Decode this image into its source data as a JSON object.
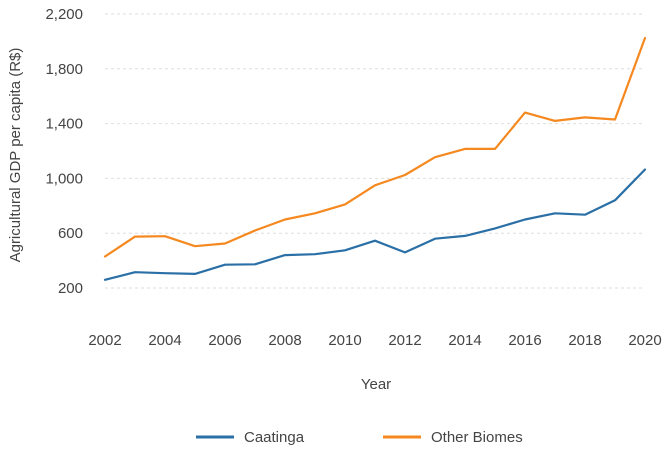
{
  "chart_data": {
    "type": "line",
    "title": "",
    "xlabel": "Year",
    "ylabel": "Agricultural GDP per capita (R$)",
    "x": [
      2002,
      2003,
      2004,
      2005,
      2006,
      2007,
      2008,
      2009,
      2010,
      2011,
      2012,
      2013,
      2014,
      2015,
      2016,
      2017,
      2018,
      2019,
      2020
    ],
    "xticks": [
      "2002",
      "2004",
      "2006",
      "2008",
      "2010",
      "2012",
      "2014",
      "2016",
      "2018",
      "2020"
    ],
    "yticks": [
      "200",
      "600",
      "1,000",
      "1,400",
      "1,800",
      "2,200"
    ],
    "ylim": [
      200,
      2200
    ],
    "grid": true,
    "legend_position": "bottom",
    "series": [
      {
        "name": "Caatinga",
        "color": "#2a6fa6",
        "values": [
          260,
          315,
          308,
          303,
          370,
          373,
          440,
          447,
          475,
          545,
          460,
          560,
          580,
          635,
          700,
          745,
          735,
          840,
          1065
        ]
      },
      {
        "name": "Other Biomes",
        "color": "#f5881f",
        "values": [
          430,
          575,
          578,
          505,
          525,
          620,
          700,
          745,
          810,
          950,
          1025,
          1155,
          1215,
          1215,
          1480,
          1420,
          1445,
          1430,
          2025
        ]
      }
    ]
  }
}
